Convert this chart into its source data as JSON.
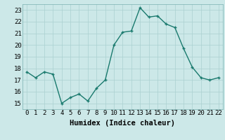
{
  "x": [
    0,
    1,
    2,
    3,
    4,
    5,
    6,
    7,
    8,
    9,
    10,
    11,
    12,
    13,
    14,
    15,
    16,
    17,
    18,
    19,
    20,
    21,
    22
  ],
  "y": [
    17.7,
    17.2,
    17.7,
    17.5,
    15.0,
    15.5,
    15.8,
    15.2,
    16.3,
    17.0,
    20.0,
    21.1,
    21.2,
    23.2,
    22.4,
    22.5,
    21.8,
    21.5,
    19.7,
    18.1,
    17.2,
    17.0,
    17.2
  ],
  "line_color": "#1a7a6e",
  "marker": "+",
  "marker_color": "#1a7a6e",
  "bg_color": "#cce8e8",
  "grid_color": "#aad0d0",
  "xlabel": "Humidex (Indice chaleur)",
  "xlim": [
    -0.5,
    22.5
  ],
  "ylim": [
    14.5,
    23.5
  ],
  "yticks": [
    15,
    16,
    17,
    18,
    19,
    20,
    21,
    22,
    23
  ],
  "xticks": [
    0,
    1,
    2,
    3,
    4,
    5,
    6,
    7,
    8,
    9,
    10,
    11,
    12,
    13,
    14,
    15,
    16,
    17,
    18,
    19,
    20,
    21,
    22
  ],
  "tick_fontsize": 6.5,
  "xlabel_fontsize": 7.5,
  "line_width": 1.0,
  "marker_size": 3.5
}
